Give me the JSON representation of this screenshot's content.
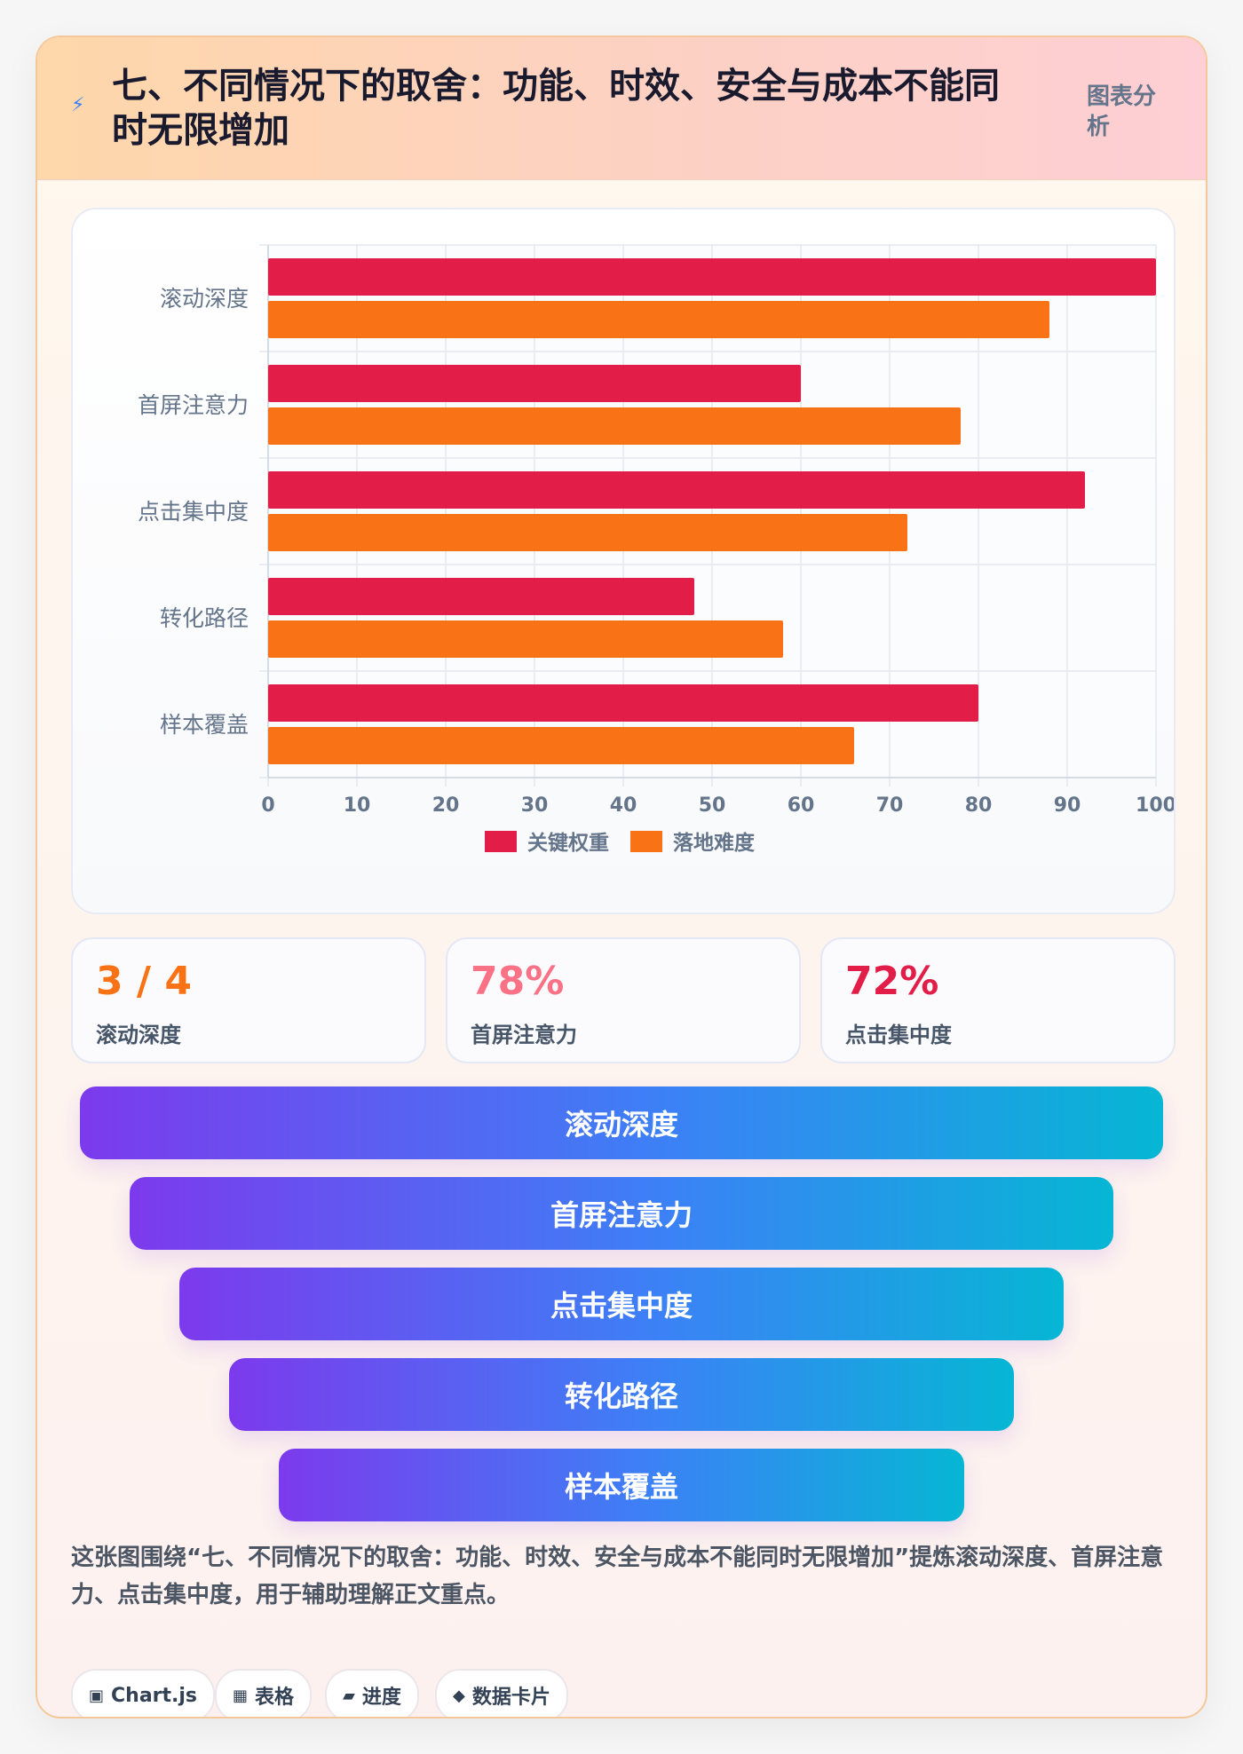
{
  "header": {
    "icon": "lightning-icon",
    "title": "七、不同情况下的取舍：功能、时效、安全与成本不能同时无限增加",
    "tag": "图表分析"
  },
  "chart_data": {
    "type": "bar",
    "orientation": "horizontal",
    "categories": [
      "滚动深度",
      "首屏注意力",
      "点击集中度",
      "转化路径",
      "样本覆盖"
    ],
    "series": [
      {
        "name": "关键权重",
        "color": "#e11d48",
        "values": [
          100,
          60,
          92,
          48,
          80
        ]
      },
      {
        "name": "落地难度",
        "color": "#f97316",
        "values": [
          88,
          78,
          72,
          58,
          66
        ]
      }
    ],
    "xlim": [
      0,
      100
    ],
    "xticks": [
      "0",
      "10",
      "20",
      "30",
      "40",
      "50",
      "60",
      "70",
      "80",
      "90",
      "100"
    ],
    "grid": true,
    "legend": "bottom"
  },
  "stats": [
    {
      "value": "3 / 4",
      "label": "滚动深度",
      "color": "#f97316"
    },
    {
      "value": "78%",
      "label": "首屏注意力",
      "color": "#fb7185"
    },
    {
      "value": "72%",
      "label": "点击集中度",
      "color": "#e11d48"
    }
  ],
  "funnel": [
    "滚动深度",
    "首屏注意力",
    "点击集中度",
    "转化路径",
    "样本覆盖"
  ],
  "note": "这张图围绕“七、不同情况下的取舍：功能、时效、安全与成本不能同时无限增加”提炼滚动深度、首屏注意力、点击集中度，用于辅助理解正文重点。",
  "tags": [
    {
      "icon": "chip-icon",
      "glyph": "▣",
      "label": "Chart.js"
    },
    {
      "icon": "table-icon",
      "glyph": "▦",
      "label": "表格"
    },
    {
      "icon": "progress-icon",
      "glyph": "▰",
      "label": "进度"
    },
    {
      "icon": "diamond-icon",
      "glyph": "◆",
      "label": "数据卡片"
    }
  ]
}
